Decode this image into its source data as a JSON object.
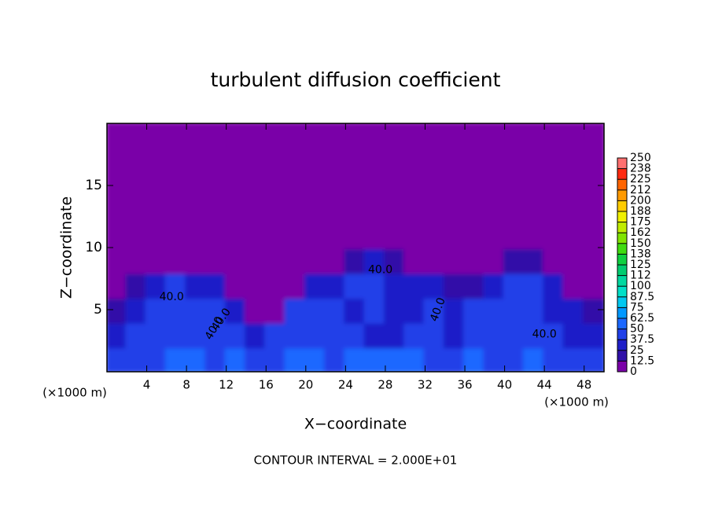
{
  "chart_data": {
    "type": "heatmap",
    "title": "turbulent diffusion coefficient",
    "x_label": "X−coordinate",
    "y_label": "Z−coordinate",
    "x_unit_labels": [
      "(×1000 m)",
      "(×1000 m)"
    ],
    "footnote": "CONTOUR INTERVAL = 2.000E+01",
    "annotations": [
      "40.0",
      "40.0",
      "40.0",
      "40.0",
      "40.0",
      "40.0"
    ],
    "xlim": [
      0,
      50
    ],
    "ylim": [
      0,
      20
    ],
    "xticks": [
      4,
      8,
      12,
      16,
      20,
      24,
      28,
      32,
      36,
      40,
      44,
      48
    ],
    "yticks": [
      5,
      10,
      15
    ],
    "levels": [
      0,
      12.5,
      25,
      37.5,
      50,
      62.5,
      75,
      87.5,
      100,
      {
        "value": 112.5,
        "label": "112"
      },
      125,
      {
        "value": 137.5,
        "label": "138"
      },
      150,
      {
        "value": 162.5,
        "label": "162"
      },
      175,
      {
        "value": 187.5,
        "label": "188"
      },
      200,
      {
        "value": 212.5,
        "label": "212"
      },
      225,
      {
        "value": 237.5,
        "label": "238"
      },
      250
    ],
    "colors": [
      "#7a00a8",
      "#3010a8",
      "#1f1fc8",
      "#2040e8",
      "#1c68ff",
      "#0098ff",
      "#00c8f0",
      "#00e0c8",
      "#00d8a0",
      "#00cc70",
      "#10d040",
      "#40dc10",
      "#80e400",
      "#c0ec00",
      "#f0f000",
      "#ffcc00",
      "#ff9a00",
      "#ff6400",
      "#ff2a10",
      "#ff7070"
    ],
    "z": [
      [
        40,
        45,
        40,
        50,
        55,
        45,
        55,
        40,
        45,
        50,
        55,
        45,
        50,
        55,
        60,
        50,
        45,
        40,
        60,
        40,
        45,
        50,
        40,
        45,
        40
      ],
      [
        35,
        38,
        38,
        40,
        42,
        40,
        38,
        35,
        38,
        40,
        40,
        38,
        38,
        36,
        35,
        40,
        38,
        35,
        38,
        40,
        38,
        40,
        38,
        36,
        35
      ],
      [
        20,
        35,
        38,
        40,
        42,
        38,
        30,
        10,
        5,
        38,
        40,
        38,
        35,
        38,
        32,
        36,
        38,
        36,
        38,
        40,
        38,
        38,
        36,
        35,
        15
      ],
      [
        0,
        20,
        36,
        38,
        36,
        30,
        5,
        0,
        0,
        5,
        30,
        36,
        38,
        38,
        36,
        36,
        30,
        15,
        20,
        36,
        38,
        38,
        36,
        10,
        0
      ],
      [
        0,
        0,
        0,
        0,
        0,
        0,
        0,
        0,
        0,
        0,
        0,
        0,
        20,
        25,
        15,
        0,
        0,
        0,
        0,
        0,
        15,
        20,
        0,
        0,
        0
      ],
      [
        0,
        0,
        0,
        0,
        0,
        0,
        0,
        0,
        0,
        0,
        0,
        0,
        0,
        0,
        0,
        0,
        0,
        0,
        0,
        0,
        0,
        0,
        0,
        0,
        0
      ],
      [
        0,
        0,
        0,
        0,
        0,
        0,
        0,
        0,
        0,
        0,
        0,
        0,
        0,
        0,
        0,
        0,
        0,
        0,
        0,
        0,
        0,
        0,
        0,
        0,
        0
      ],
      [
        0,
        0,
        0,
        0,
        0,
        0,
        0,
        0,
        0,
        0,
        0,
        0,
        0,
        0,
        0,
        0,
        0,
        0,
        0,
        0,
        0,
        0,
        0,
        0,
        0
      ],
      [
        0,
        0,
        0,
        0,
        0,
        0,
        0,
        0,
        0,
        0,
        0,
        0,
        0,
        0,
        0,
        0,
        0,
        0,
        0,
        0,
        0,
        0,
        0,
        0,
        0
      ],
      [
        0,
        0,
        0,
        0,
        0,
        0,
        0,
        0,
        0,
        0,
        0,
        0,
        0,
        0,
        0,
        0,
        0,
        0,
        0,
        0,
        0,
        0,
        0,
        0,
        0
      ]
    ]
  }
}
